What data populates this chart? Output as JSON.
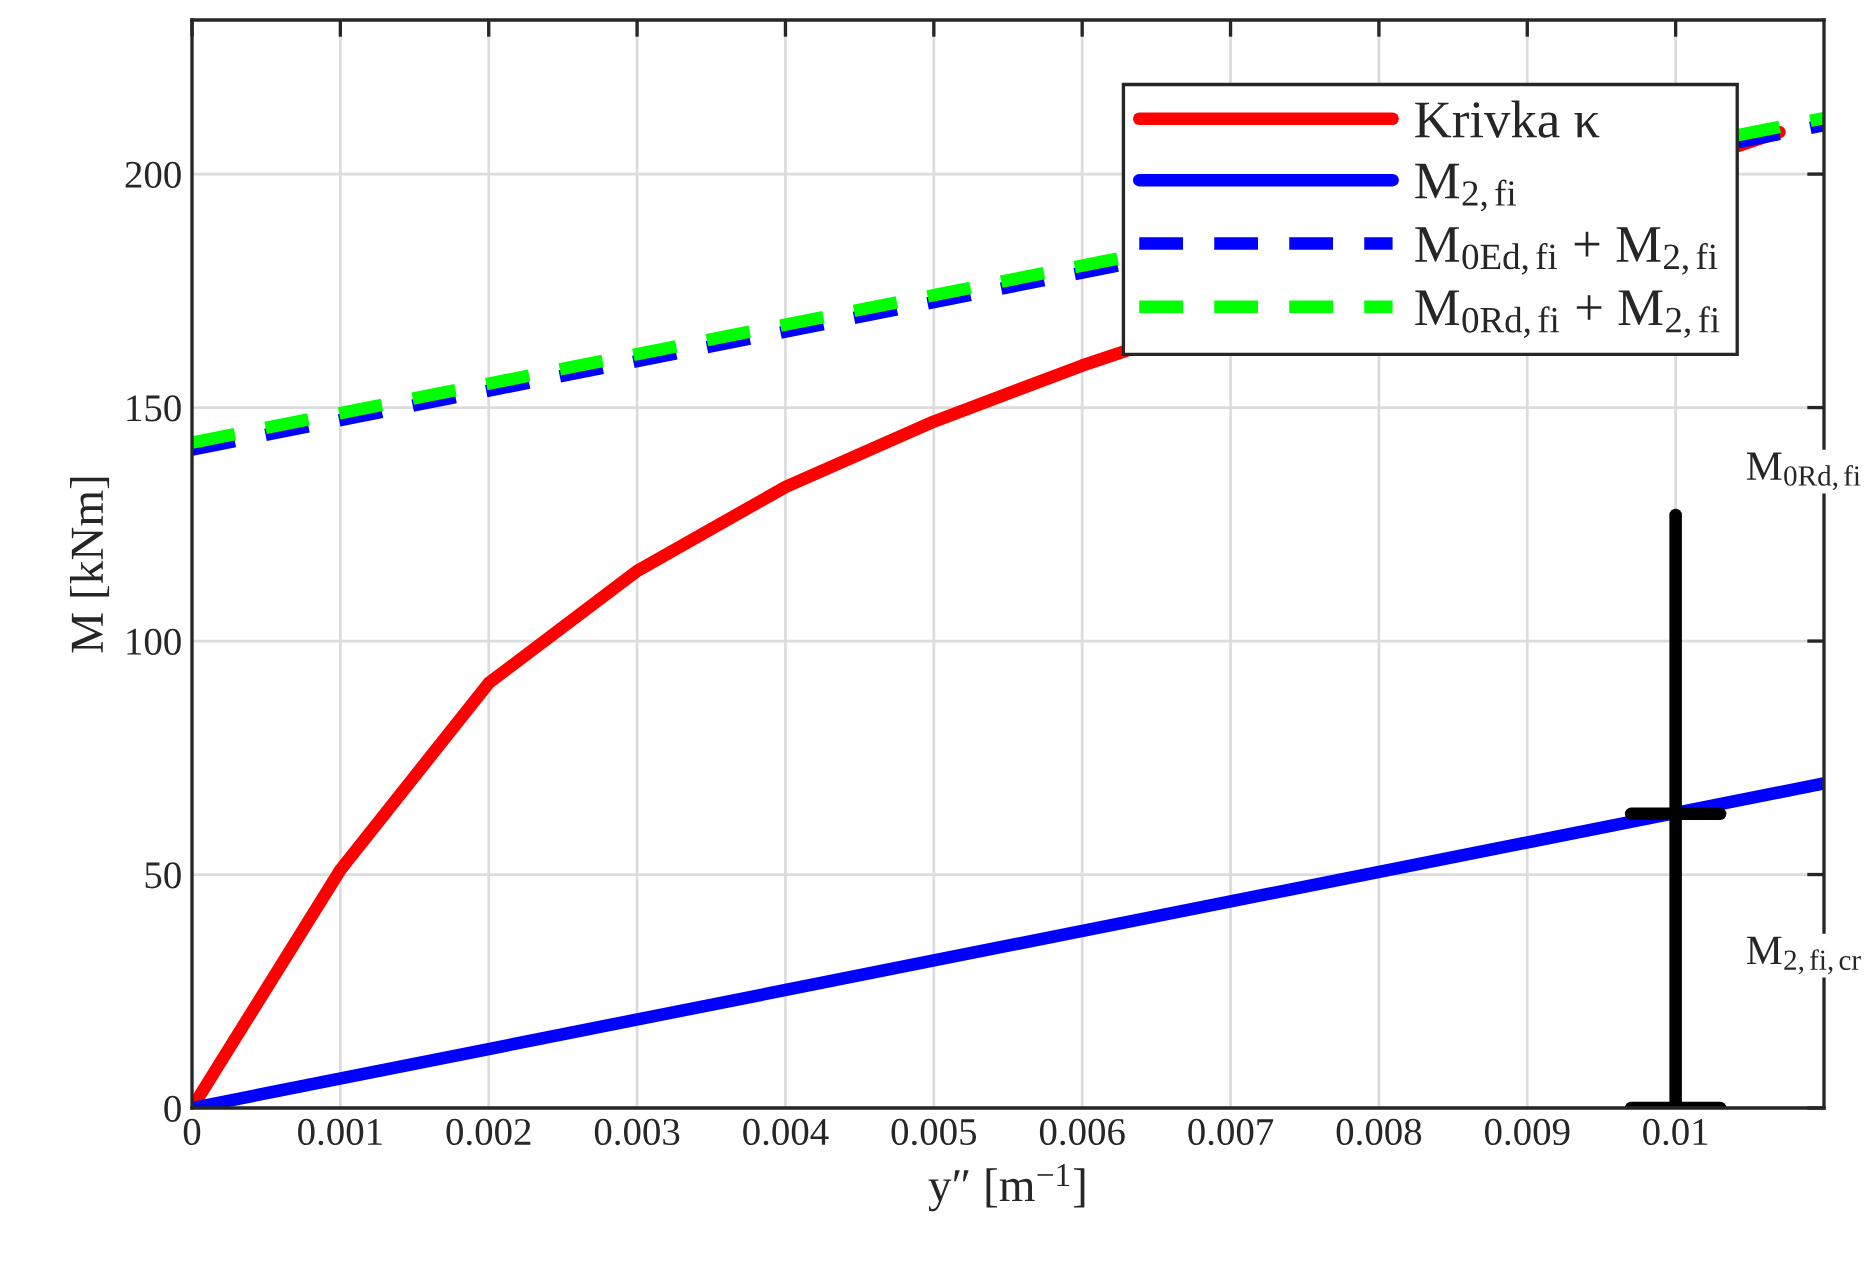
{
  "chart_data": {
    "type": "line",
    "xlabel": "y″ [m$^{−1}$]",
    "ylabel": "M [kNm]",
    "xlim": [
      0,
      0.011
    ],
    "ylim": [
      0,
      233
    ],
    "xticks": [
      0,
      0.001,
      0.002,
      0.003,
      0.004,
      0.005,
      0.006,
      0.007,
      0.008,
      0.009,
      0.01
    ],
    "yticks": [
      0,
      50,
      100,
      150,
      200
    ],
    "grid": true,
    "legend": "top right",
    "series": [
      {
        "name": "Krivka κ",
        "color": "#ff0000",
        "line_style": "solid",
        "x": [
          0,
          0.001,
          0.002,
          0.003,
          0.004,
          0.005,
          0.006,
          0.0107
        ],
        "values": [
          0,
          51,
          91,
          115,
          133,
          147,
          159,
          209
        ]
      },
      {
        "name": "M$_{2,fi}$",
        "color": "#0000ff",
        "line_style": "solid",
        "x": [
          0,
          0.011
        ],
        "values": [
          0,
          69.5
        ]
      },
      {
        "name": "M$_{0Ed,fi}$ + M$_{2,fi}$",
        "color": "#0000ff",
        "line_style": "dashed",
        "x": [
          0,
          0.011
        ],
        "values": [
          141,
          210.5
        ]
      },
      {
        "name": "M$_{0Rd,fi}$ + M$_{2,fi}$",
        "color": "#00ff00",
        "line_style": "dashed",
        "x": [
          0,
          0.011
        ],
        "values": [
          142.5,
          212
        ]
      },
      {
        "color": "#000000",
        "line_style": "solid",
        "x": [
          0.01,
          0.01
        ],
        "values": [
          0,
          127
        ]
      },
      {
        "color": "#000000",
        "line_style": "solid",
        "x": [
          0.0097,
          0.0103
        ],
        "values": [
          63,
          63
        ]
      },
      {
        "color": "#000000",
        "line_style": "solid",
        "x": [
          0.0097,
          0.0103
        ],
        "values": [
          0,
          0
        ]
      }
    ],
    "annotations": [
      "M$_{0Rd,fi}$",
      "M$_{2,fi,cr}$"
    ]
  }
}
